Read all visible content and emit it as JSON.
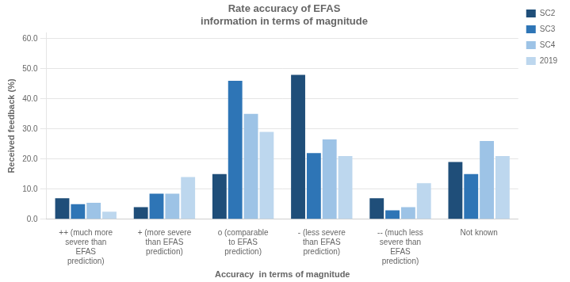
{
  "chart_data": {
    "type": "bar",
    "title": "Rate accuracy of EFAS\ninformation in terms of magnitude",
    "xlabel": "Accuracy  in terms of magnitude",
    "ylabel": "Received feedback (%)",
    "categories": [
      "++ (much more\nsevere than\nEFAS\nprediction)",
      "+ (more severe\nthan EFAS\nprediction)",
      "o (comparable\nto EFAS\nprediction)",
      "- (less severe\nthan EFAS\nprediction)",
      "-- (much less\nsevere than\nEFAS\nprediction)",
      "Not known"
    ],
    "series": [
      {
        "name": "SC2",
        "color": "#1f4e79",
        "values": [
          7.0,
          4.0,
          15.0,
          48.0,
          7.0,
          19.0
        ]
      },
      {
        "name": "SC3",
        "color": "#2e75b6",
        "values": [
          5.0,
          8.5,
          46.0,
          22.0,
          3.0,
          15.0
        ]
      },
      {
        "name": "SC4",
        "color": "#9dc3e6",
        "values": [
          5.5,
          8.5,
          35.0,
          26.5,
          4.0,
          26.0
        ]
      },
      {
        "name": "2019",
        "color": "#bdd7ee",
        "values": [
          2.5,
          14.0,
          29.0,
          21.0,
          12.0,
          21.0
        ]
      }
    ],
    "ylim": [
      0,
      62
    ],
    "yticks": [
      {
        "value": 0,
        "label": "0.0"
      },
      {
        "value": 10,
        "label": "10.0"
      },
      {
        "value": 20,
        "label": "20.0"
      },
      {
        "value": 30,
        "label": "30.0"
      },
      {
        "value": 40,
        "label": "40.0"
      },
      {
        "value": 50,
        "label": "50.0"
      },
      {
        "value": 60,
        "label": "60.0"
      }
    ],
    "grid": true,
    "legend": "right"
  }
}
